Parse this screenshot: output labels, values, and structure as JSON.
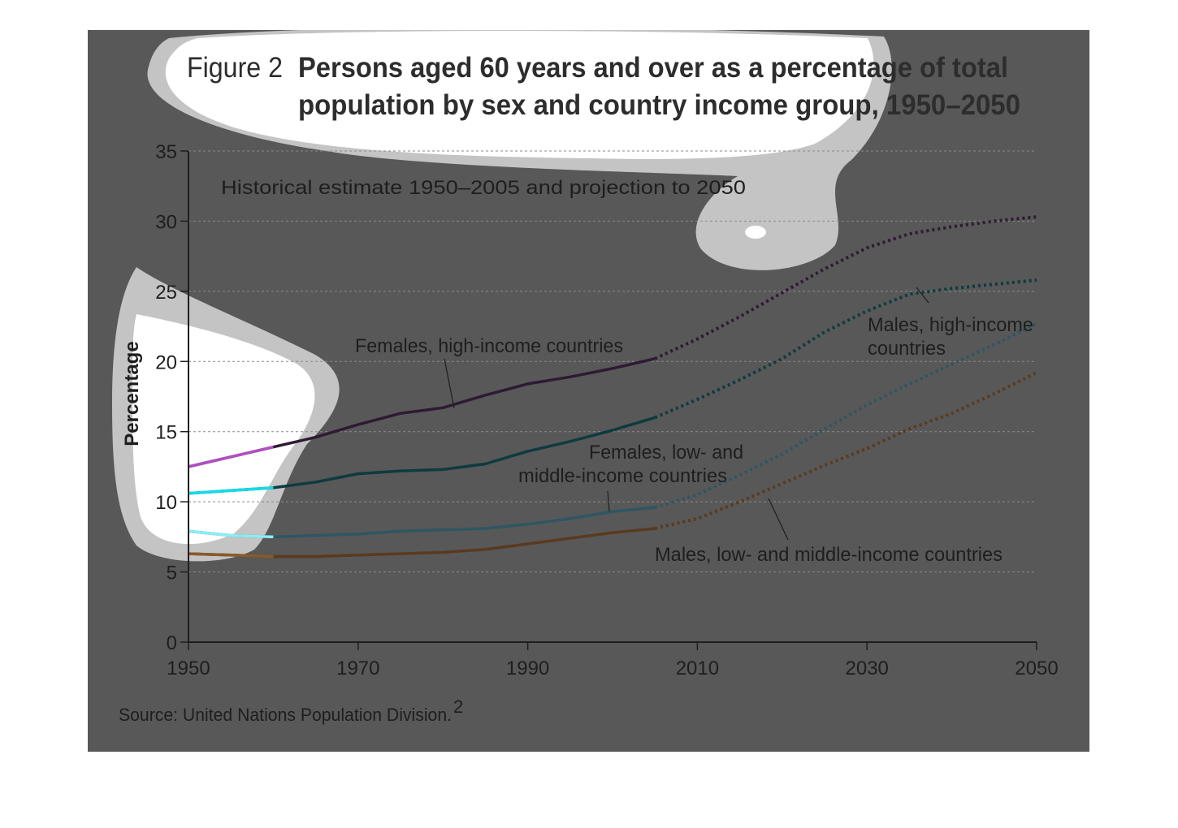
{
  "chart_data": {
    "type": "line",
    "figure_label": "Figure 2",
    "title_lines": [
      "Persons aged 60 years and over as a percentage of total",
      "population by sex and country income group, 1950–2050"
    ],
    "subtitle": "Historical estimate 1950–2005 and projection to 2050",
    "xlabel": "",
    "ylabel": "Percentage",
    "xlim": [
      1950,
      2050
    ],
    "ylim": [
      0,
      35
    ],
    "x_ticks": [
      "1950",
      "1970",
      "1990",
      "2010",
      "2030",
      "2050"
    ],
    "y_ticks": [
      "0",
      "5",
      "10",
      "15",
      "20",
      "25",
      "30",
      "35"
    ],
    "grid": "horizontal-dashed",
    "historical_end": 2005,
    "series": [
      {
        "name": "Females, high-income countries",
        "color": "#2e1a33",
        "light_color": "#b050c0",
        "x": [
          1950,
          1955,
          1960,
          1965,
          1970,
          1975,
          1980,
          1985,
          1990,
          1995,
          2000,
          2005,
          2010,
          2015,
          2020,
          2025,
          2030,
          2035,
          2040,
          2045,
          2050
        ],
        "y": [
          12.5,
          13.2,
          13.9,
          14.6,
          15.5,
          16.3,
          16.7,
          17.6,
          18.4,
          18.9,
          19.5,
          20.2,
          21.6,
          23.2,
          24.9,
          26.6,
          28.1,
          29.1,
          29.6,
          30.0,
          30.3
        ]
      },
      {
        "name": "Males, high-income countries",
        "color": "#0e3b3f",
        "light_color": "#11dce8",
        "x": [
          1950,
          1955,
          1960,
          1965,
          1970,
          1975,
          1980,
          1985,
          1990,
          1995,
          2000,
          2005,
          2010,
          2015,
          2020,
          2025,
          2030,
          2035,
          2040,
          2045,
          2050
        ],
        "y": [
          10.6,
          10.8,
          11.0,
          11.4,
          12.0,
          12.2,
          12.3,
          12.7,
          13.6,
          14.3,
          15.1,
          16.0,
          17.3,
          18.7,
          20.2,
          22.1,
          23.6,
          24.8,
          25.2,
          25.5,
          25.8
        ]
      },
      {
        "name": "Females, low- and middle-income countries",
        "color": "#2e5663",
        "light_color": "#8aeef5",
        "x": [
          1950,
          1955,
          1960,
          1965,
          1970,
          1975,
          1980,
          1985,
          1990,
          1995,
          2000,
          2005,
          2010,
          2015,
          2020,
          2025,
          2030,
          2035,
          2040,
          2045,
          2050
        ],
        "y": [
          7.9,
          7.6,
          7.5,
          7.6,
          7.7,
          7.9,
          8.0,
          8.1,
          8.4,
          8.8,
          9.3,
          9.6,
          10.5,
          11.9,
          13.4,
          15.2,
          16.9,
          18.4,
          19.8,
          21.2,
          22.7
        ]
      },
      {
        "name": "Males, low- and middle-income countries",
        "color": "#5a3a1e",
        "light_color": "#8a5a2a",
        "x": [
          1950,
          1955,
          1960,
          1965,
          1970,
          1975,
          1980,
          1985,
          1990,
          1995,
          2000,
          2005,
          2010,
          2015,
          2020,
          2025,
          2030,
          2035,
          2040,
          2045,
          2050
        ],
        "y": [
          6.3,
          6.2,
          6.1,
          6.1,
          6.2,
          6.3,
          6.4,
          6.6,
          7.0,
          7.4,
          7.8,
          8.1,
          8.8,
          10.0,
          11.3,
          12.6,
          13.8,
          15.2,
          16.3,
          17.7,
          19.2
        ]
      }
    ],
    "annotations": [
      "Females, high-income countries",
      "Males, high-income",
      "countries",
      "Females, low- and",
      "middle-income countries",
      "Males, low- and middle-income countries"
    ],
    "source": "Source: United Nations Population Division.",
    "source_superscript": "2"
  }
}
